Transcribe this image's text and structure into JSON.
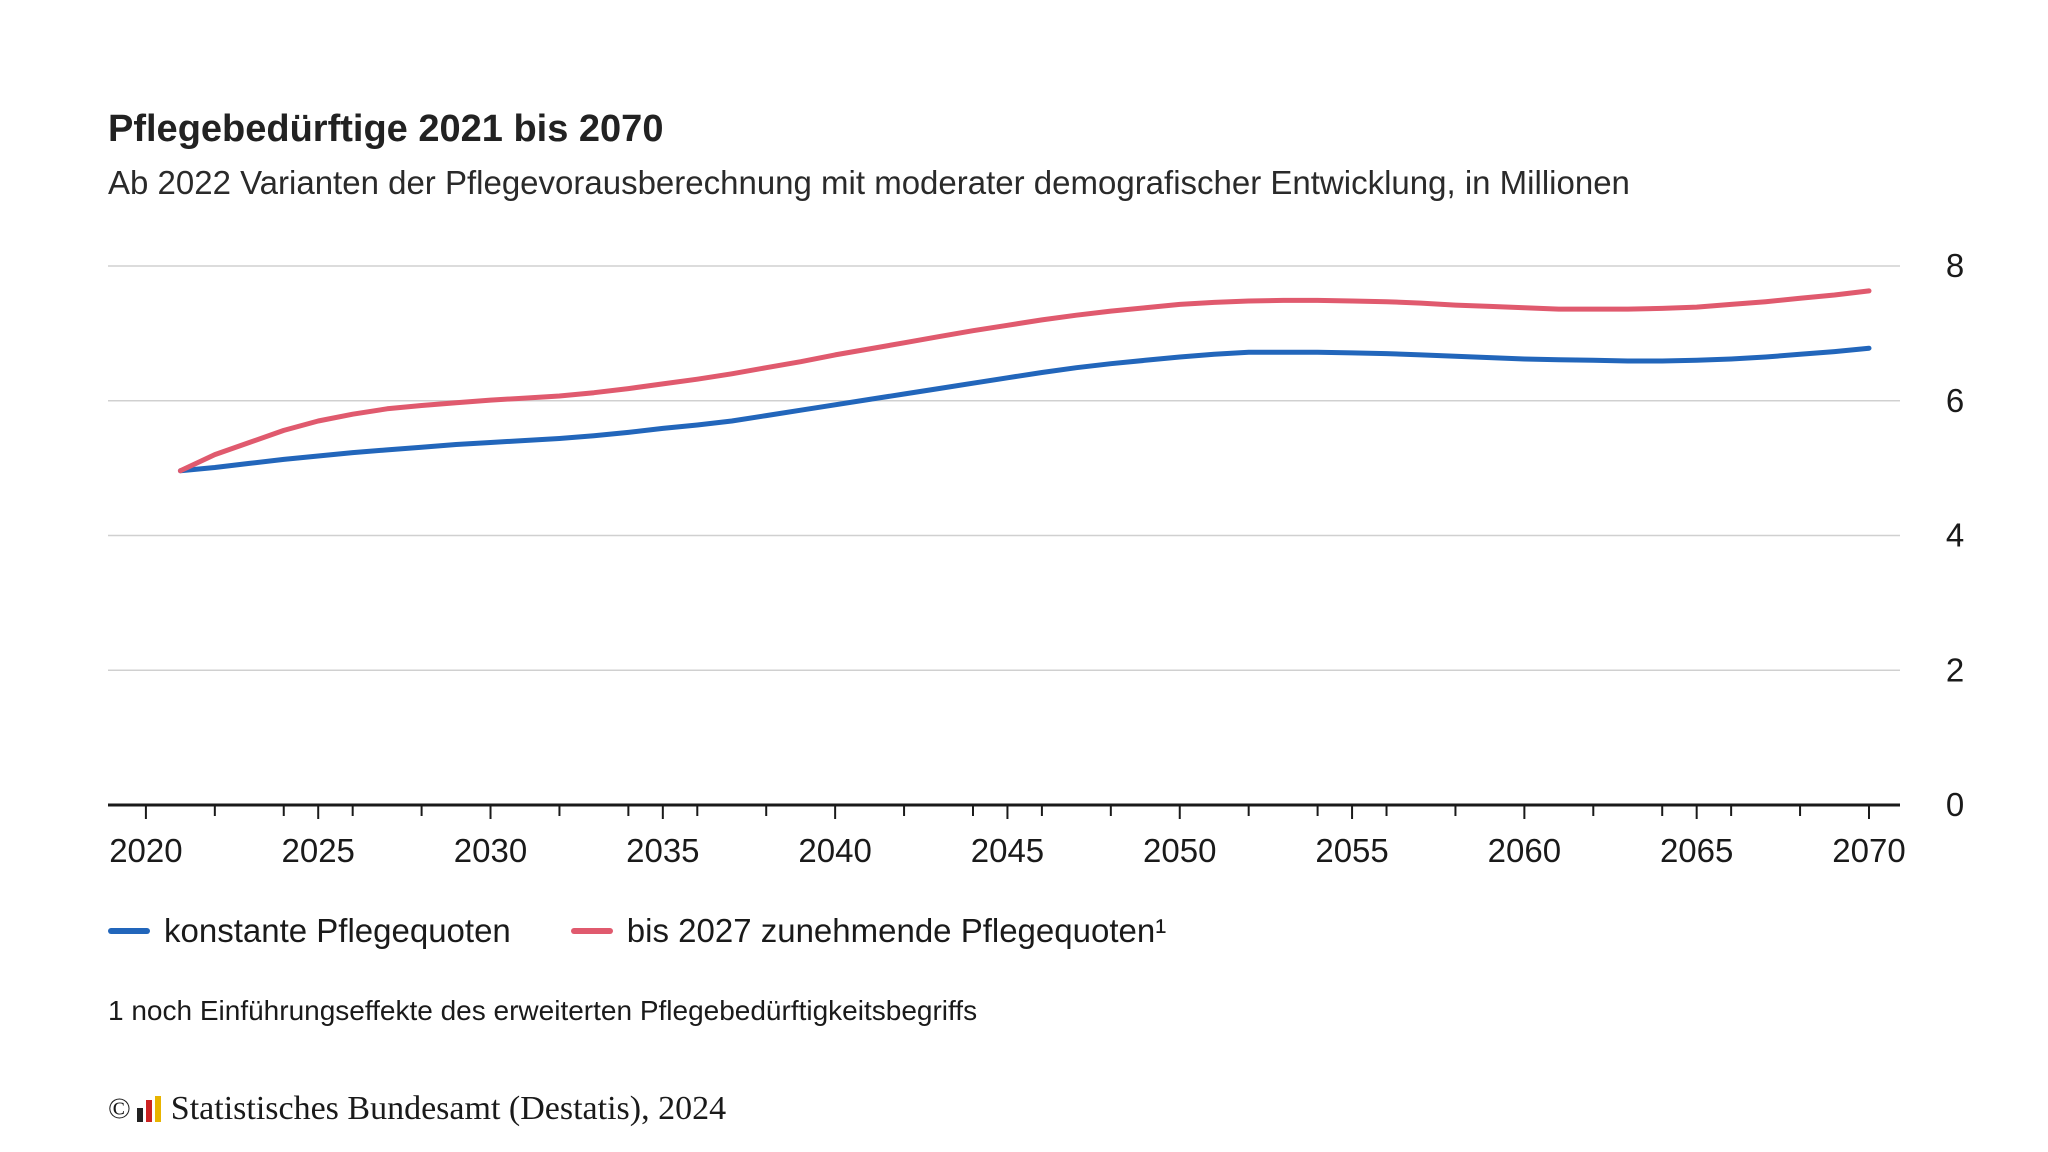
{
  "header": {
    "title": "Pflegebedürftige 2021 bis 2070",
    "subtitle": "Ab 2022 Varianten der Pflegevorausberechnung mit moderater demografischer Entwicklung, in Millionen"
  },
  "chart_data": {
    "type": "line",
    "title": "Pflegebedürftige 2021 bis 2070",
    "xlabel": "",
    "ylabel": "in Millionen",
    "xlim": [
      2018.9,
      2070.9
    ],
    "ylim": [
      0,
      8
    ],
    "y_ticks": [
      0,
      2,
      4,
      6,
      8
    ],
    "x_tick_labels": [
      2020,
      2025,
      2030,
      2035,
      2040,
      2045,
      2050,
      2055,
      2060,
      2065,
      2070
    ],
    "grid": true,
    "y_axis_position": "right",
    "legend_position": "bottom-left",
    "x": [
      2021,
      2022,
      2023,
      2024,
      2025,
      2026,
      2027,
      2028,
      2029,
      2030,
      2031,
      2032,
      2033,
      2034,
      2035,
      2036,
      2037,
      2038,
      2039,
      2040,
      2041,
      2042,
      2043,
      2044,
      2045,
      2046,
      2047,
      2048,
      2049,
      2050,
      2051,
      2052,
      2053,
      2054,
      2055,
      2056,
      2057,
      2058,
      2059,
      2060,
      2061,
      2062,
      2063,
      2064,
      2065,
      2066,
      2067,
      2068,
      2069,
      2070
    ],
    "series": [
      {
        "name": "konstante Pflegequoten",
        "color": "#2266bb",
        "values": [
          4.96,
          5.01,
          5.07,
          5.13,
          5.18,
          5.23,
          5.27,
          5.31,
          5.35,
          5.38,
          5.41,
          5.44,
          5.48,
          5.53,
          5.59,
          5.64,
          5.7,
          5.78,
          5.86,
          5.94,
          6.02,
          6.1,
          6.18,
          6.26,
          6.34,
          6.42,
          6.49,
          6.55,
          6.6,
          6.65,
          6.69,
          6.72,
          6.72,
          6.72,
          6.71,
          6.7,
          6.68,
          6.66,
          6.64,
          6.62,
          6.61,
          6.6,
          6.59,
          6.59,
          6.6,
          6.62,
          6.65,
          6.69,
          6.73,
          6.78
        ]
      },
      {
        "name": "bis 2027 zunehmende Pflegequoten¹",
        "color": "#e05a6e",
        "values": [
          4.96,
          5.2,
          5.38,
          5.56,
          5.7,
          5.8,
          5.88,
          5.93,
          5.97,
          6.01,
          6.04,
          6.07,
          6.12,
          6.18,
          6.25,
          6.32,
          6.4,
          6.49,
          6.58,
          6.68,
          6.77,
          6.86,
          6.95,
          7.04,
          7.12,
          7.2,
          7.27,
          7.33,
          7.38,
          7.43,
          7.46,
          7.48,
          7.49,
          7.49,
          7.48,
          7.47,
          7.45,
          7.42,
          7.4,
          7.38,
          7.36,
          7.36,
          7.36,
          7.37,
          7.39,
          7.43,
          7.47,
          7.52,
          7.57,
          7.63
        ]
      }
    ]
  },
  "legend": {
    "items": [
      {
        "label": "konstante Pflegequoten",
        "color": "#2266bb"
      },
      {
        "label": "bis 2027 zunehmende Pflegequoten¹",
        "color": "#e05a6e"
      }
    ]
  },
  "footnote": "1 noch Einführungseffekte des erweiterten Pflegebedürftigkeitsbegriffs",
  "source": {
    "copyright_symbol": "©",
    "text": "Statistisches Bundesamt (Destatis), 2024",
    "logo_colors": [
      "#222222",
      "#cc2222",
      "#e8b400"
    ]
  }
}
